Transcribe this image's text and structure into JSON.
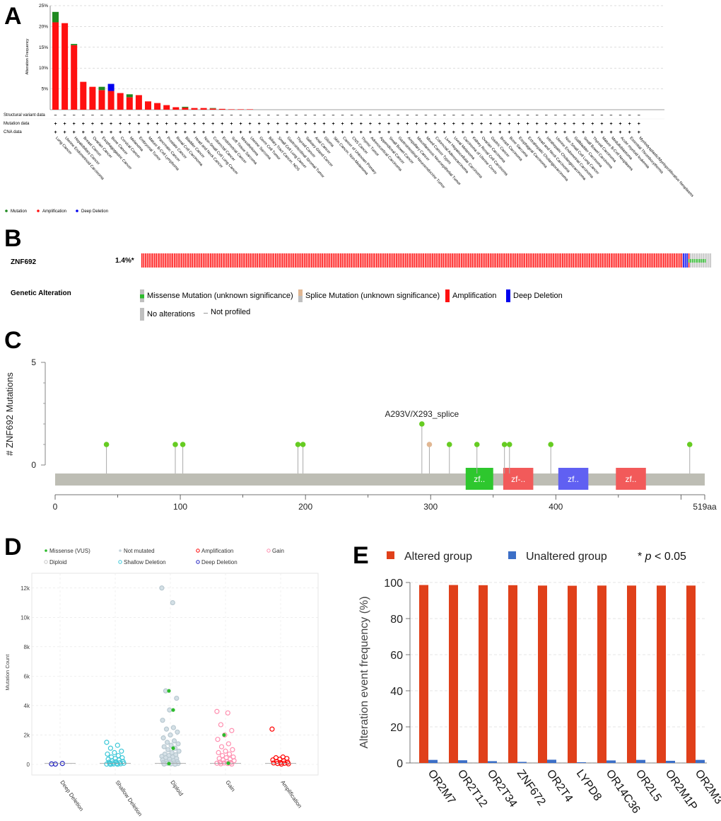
{
  "panel_letters": {
    "a": "A",
    "b": "B",
    "c": "C",
    "d": "D",
    "e": "E"
  },
  "colors": {
    "mutation": "#1f8a20",
    "amplification": "#ff1010",
    "deep_deletion": "#0000ee",
    "splice": "#e1b793",
    "gray": "#bfbfbf",
    "missense": "#2dbb2d"
  },
  "chart_data": [
    {
      "panel": "A",
      "type": "bar",
      "ylabel": "Alteration Frequency",
      "ylim": [
        0,
        25
      ],
      "yticks": [
        5,
        10,
        15,
        20,
        25
      ],
      "ytick_labels": [
        "5%",
        "10%",
        "15%",
        "20%",
        "25%"
      ],
      "categories": [
        "Lung Cancer",
        "Uterine Endometrioid Carcinoma",
        "Hepatobiliary Cancer",
        "Breast Cancer",
        "Ovarian Cancer",
        "Esophagogastric Cancer",
        "Bone Cancer",
        "Cervical Cancer",
        "Melanoma",
        "Embryonal Tumor",
        "Mature B-Cell Lymphoma",
        "Pancreatic Cancer",
        "Prostate Cancer",
        "Renal Cell Carcinoma",
        "Bladder Cancer",
        "Head and Neck Cancer",
        "Non-Small Cell Lung Cancer",
        "Colorectal Cancer",
        "Endometrial Cancer",
        "Soft Tissue Sarcoma",
        "Mesothelioma",
        "Uterine Sarcoma",
        "Germ Cell Tumor",
        "Biliary Tract Cancer, NOS",
        "Small Cell Lung Cancer",
        "Gastrointestinal Stromal Tumor",
        "Thyroid Cancer",
        "Salivary Gland Cancer",
        "Anal Cancer",
        "Glioma",
        "Skin Cancer, Non-Melanoma",
        "Cancer of Unknown Primary",
        "CNS Cancer",
        "Thymic Tumor",
        "Adrenocortical Carcinoma",
        "Appendiceal Cancer",
        "Small Bowel Cancer",
        "Gastrointestinal Neuroendocrine Tumor",
        "Ampullary Cancer",
        "Miscellaneous Neuroepithelial Tumor",
        "Mixed Cancer Types",
        "Colorectal Adenocarcinoma",
        "Liver Hepatocellular Carcinoma",
        "Uveal Melanoma",
        "Carcinoma of Uterine Cervix",
        "Kidney Renal Cell Carcinoma",
        "Ovarian Carcinoma",
        "Gastric Cancer",
        "Breast Carcinoma",
        "Bone Sarcoma",
        "Esophageal Carcinoma",
        "Extrahepatic Cholangiocarcinoma",
        "Head and Neck Carcinoma",
        "Intrahepatic Cholangiocarcinoma",
        "Uterine Endometrial Carcinoma",
        "Non Small Cell Lung Cancer",
        "Gallbladder Carcinoma",
        "Small Bowel Carcinoma",
        "Thyroid Carcinoma",
        "Mature B-Cell Neoplasms",
        "Medulloblastoma",
        "Acute myeloid leukemia",
        "Essential Thrombocythemia",
        "Myelodysplastic/Myeloproliferative Neoplasms"
      ],
      "series": [
        {
          "name": "Amplification",
          "values": [
            21.0,
            20.8,
            15.5,
            6.7,
            5.5,
            4.7,
            4.5,
            4.0,
            3.0,
            3.5,
            2.0,
            1.6,
            1.1,
            0.6,
            0.5,
            0.4,
            0.4,
            0.3,
            0.2,
            0.1,
            0.1,
            0.1,
            0,
            0,
            0,
            0,
            0,
            0,
            0,
            0,
            0,
            0,
            0,
            0,
            0,
            0,
            0,
            0,
            0,
            0,
            0,
            0,
            0,
            0,
            0,
            0,
            0,
            0,
            0,
            0,
            0,
            0,
            0,
            0,
            0,
            0,
            0,
            0,
            0,
            0,
            0,
            0,
            0,
            0
          ]
        },
        {
          "name": "Mutation",
          "values": [
            2.5,
            0,
            0.3,
            0,
            0,
            0.8,
            0,
            0,
            0.7,
            0,
            0,
            0,
            0,
            0,
            0.2,
            0,
            0,
            0.1,
            0,
            0,
            0,
            0,
            0,
            0,
            0,
            0,
            0,
            0,
            0,
            0,
            0,
            0,
            0,
            0,
            0,
            0,
            0,
            0,
            0,
            0,
            0,
            0,
            0,
            0,
            0,
            0,
            0,
            0,
            0,
            0,
            0,
            0,
            0,
            0,
            0,
            0,
            0,
            0,
            0,
            0,
            0,
            0,
            0,
            0
          ]
        },
        {
          "name": "Deep Deletion",
          "values": [
            0,
            0,
            0,
            0,
            0,
            0,
            1.7,
            0,
            0,
            0,
            0,
            0,
            0,
            0,
            0,
            0,
            0,
            0,
            0,
            0,
            0,
            0,
            0,
            0,
            0,
            0,
            0,
            0,
            0,
            0,
            0,
            0,
            0,
            0,
            0,
            0,
            0,
            0,
            0,
            0,
            0,
            0,
            0,
            0,
            0,
            0,
            0,
            0,
            0,
            0,
            0,
            0,
            0,
            0,
            0,
            0,
            0,
            0,
            0,
            0,
            0,
            0,
            0,
            0
          ]
        }
      ],
      "track_labels": [
        "Structural variant data",
        "Mutation data",
        "CNA data"
      ],
      "track_symbols": [
        "–",
        "+"
      ],
      "legend": [
        {
          "name": "Mutation",
          "color": "#1f8a20"
        },
        {
          "name": "Amplification",
          "color": "#ff1010"
        },
        {
          "name": "Deep Deletion",
          "color": "#0000ee"
        }
      ]
    },
    {
      "panel": "B",
      "type": "oncoprint",
      "gene": "ZNF692",
      "percent": "1.4%*",
      "section_label": "Genetic Alteration",
      "legend": [
        {
          "name": "Missense Mutation (unknown significance)",
          "color": "#2dbb2d"
        },
        {
          "name": "Splice Mutation (unknown significance)",
          "color": "#e1b793"
        },
        {
          "name": "Amplification",
          "color": "#ff1010"
        },
        {
          "name": "Deep Deletion",
          "color": "#0000ee"
        },
        {
          "name": "No alterations",
          "color": "#bfbfbf"
        },
        {
          "name": "Not profiled",
          "color": "#bfbfbf"
        }
      ],
      "samples": {
        "amplification": 300,
        "deep_deletion": 3,
        "missense_amplification": 1,
        "missense": 9,
        "no_alteration": 3
      }
    },
    {
      "panel": "C",
      "type": "lollipop",
      "ylabel": "# ZNF692 Mutations",
      "ylim": [
        0,
        5
      ],
      "yticks": [
        0,
        5
      ],
      "xlim": [
        0,
        519
      ],
      "xticks": [
        0,
        100,
        200,
        300,
        400
      ],
      "xlabel_end": "519aa",
      "annotation": "A293V/X293_splice",
      "mutations": [
        {
          "pos": 41,
          "count": 1,
          "type": "missense"
        },
        {
          "pos": 96,
          "count": 1,
          "type": "missense"
        },
        {
          "pos": 102,
          "count": 1,
          "type": "missense"
        },
        {
          "pos": 194,
          "count": 1,
          "type": "missense"
        },
        {
          "pos": 198,
          "count": 1,
          "type": "missense"
        },
        {
          "pos": 293,
          "count": 2,
          "type": "missense"
        },
        {
          "pos": 299,
          "count": 1,
          "type": "splice"
        },
        {
          "pos": 315,
          "count": 1,
          "type": "missense"
        },
        {
          "pos": 337,
          "count": 1,
          "type": "missense"
        },
        {
          "pos": 359,
          "count": 1,
          "type": "missense"
        },
        {
          "pos": 363,
          "count": 1,
          "type": "missense"
        },
        {
          "pos": 396,
          "count": 1,
          "type": "missense"
        },
        {
          "pos": 507,
          "count": 1,
          "type": "missense"
        }
      ],
      "domains": [
        {
          "label": "zf..",
          "start": 328,
          "end": 350,
          "color": "#2ec72e"
        },
        {
          "label": "zf-..",
          "start": 358,
          "end": 382,
          "color": "#f25a5a"
        },
        {
          "label": "zf..",
          "start": 402,
          "end": 426,
          "color": "#6060f2"
        },
        {
          "label": "zf..",
          "start": 448,
          "end": 472,
          "color": "#f25a5a"
        }
      ]
    },
    {
      "panel": "D",
      "type": "scatter",
      "ylabel": "Mutation Count",
      "ylim": [
        0,
        13000
      ],
      "yticks": [
        0,
        2000,
        4000,
        6000,
        8000,
        10000,
        12000
      ],
      "ytick_labels": [
        "0",
        "2k",
        "4k",
        "6k",
        "8k",
        "10k",
        "12k"
      ],
      "categories": [
        "Deep Deletion",
        "Shallow Deletion",
        "Diploid",
        "Gain",
        "Amplification"
      ],
      "legend": [
        {
          "name": "Missense (VUS)",
          "color": "#2dbb2d",
          "shape": "dot"
        },
        {
          "name": "Not mutated",
          "color": "#c4d4dc",
          "shape": "dot"
        },
        {
          "name": "Amplification",
          "color": "#ff0000",
          "shape": "ring"
        },
        {
          "name": "Gain",
          "color": "#ff8fb0",
          "shape": "ring"
        },
        {
          "name": "Diploid",
          "color": "#c4c4c4",
          "shape": "ring"
        },
        {
          "name": "Shallow Deletion",
          "color": "#3cc8d8",
          "shape": "ring"
        },
        {
          "name": "Deep Deletion",
          "color": "#2020c0",
          "shape": "ring"
        }
      ],
      "points": [
        {
          "cat": 0,
          "values": [
            30,
            60,
            20
          ]
        },
        {
          "cat": 1,
          "values": [
            1500,
            1300,
            1100,
            900,
            800,
            700,
            600,
            500,
            450,
            400,
            350,
            300,
            250,
            200,
            180,
            150,
            120,
            100,
            80,
            60,
            50,
            40,
            30,
            20,
            10,
            5
          ]
        },
        {
          "cat": 2,
          "values": [
            12000,
            11000,
            5000,
            4500,
            3700,
            3000,
            2500,
            2400,
            2200,
            2000,
            1800,
            1600,
            1500,
            1400,
            1300,
            1200,
            1100,
            1000,
            900,
            800,
            700,
            650,
            600,
            550,
            500,
            450,
            400,
            350,
            300,
            250,
            200,
            180,
            150,
            120,
            100,
            80,
            60,
            40,
            20,
            10
          ]
        },
        {
          "cat": 3,
          "values": [
            3600,
            3500,
            2700,
            2300,
            2000,
            1700,
            1400,
            1200,
            1000,
            900,
            800,
            700,
            600,
            500,
            450,
            400,
            350,
            300,
            250,
            200,
            150,
            120,
            100,
            80,
            60,
            40,
            20
          ]
        },
        {
          "cat": 4,
          "values": [
            2400,
            500,
            450,
            400,
            350,
            300,
            250,
            200,
            150,
            120,
            100,
            80,
            60,
            40,
            20
          ]
        }
      ]
    },
    {
      "panel": "E",
      "type": "bar",
      "ylabel": "Alteration event frequency (%)",
      "ylim": [
        0,
        100
      ],
      "yticks": [
        0,
        20,
        40,
        60,
        80,
        100
      ],
      "categories": [
        "OR2M7",
        "OR2T12",
        "OR2T34",
        "ZNF672",
        "OR2T4",
        "LYPD8",
        "OR14C36",
        "OR2L5",
        "OR2M1P",
        "OR2M3"
      ],
      "series": [
        {
          "name": "Altered group",
          "color": "#e0401a",
          "values": [
            98.6,
            98.6,
            98.5,
            98.5,
            98.3,
            98.2,
            98.3,
            98.3,
            98.3,
            98.3
          ]
        },
        {
          "name": "Unaltered group",
          "color": "#3c6fc7",
          "values": [
            1.7,
            1.5,
            1.0,
            0.6,
            1.8,
            0.4,
            1.4,
            1.7,
            1.2,
            1.7
          ]
        }
      ],
      "significance": {
        "star": "*",
        "p": "p",
        "rest": "< 0.05"
      }
    }
  ]
}
